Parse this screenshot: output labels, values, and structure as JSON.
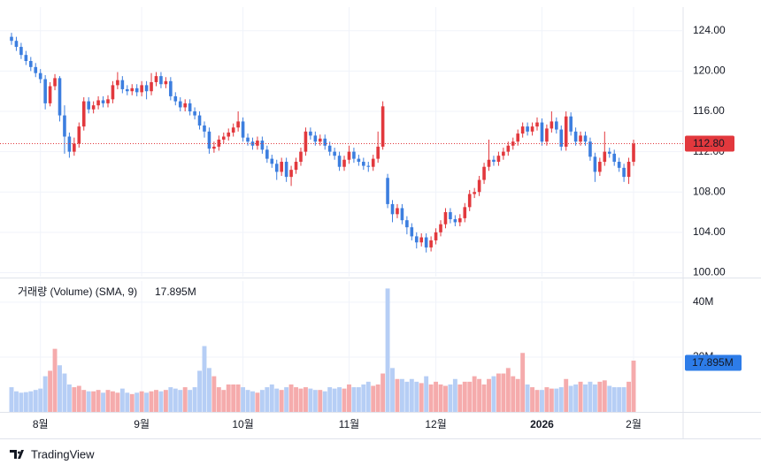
{
  "chart_data": {
    "type": "candlestick",
    "categories": [
      null,
      null,
      null,
      null,
      null,
      null,
      "8월",
      null,
      null,
      null,
      null,
      null,
      null,
      null,
      null,
      null,
      null,
      null,
      null,
      null,
      null,
      null,
      null,
      null,
      null,
      null,
      null,
      "9월",
      null,
      null,
      null,
      null,
      null,
      null,
      null,
      null,
      null,
      null,
      null,
      null,
      null,
      null,
      null,
      null,
      null,
      null,
      null,
      null,
      "10월",
      null,
      null,
      null,
      null,
      null,
      null,
      null,
      null,
      null,
      null,
      null,
      null,
      null,
      null,
      null,
      null,
      null,
      null,
      null,
      null,
      null,
      "11월",
      null,
      null,
      null,
      null,
      null,
      null,
      null,
      null,
      null,
      null,
      null,
      null,
      null,
      null,
      null,
      null,
      null,
      "12월",
      null,
      null,
      null,
      null,
      null,
      null,
      null,
      null,
      null,
      null,
      null,
      null,
      null,
      null,
      null,
      null,
      null,
      null,
      null,
      null,
      null,
      "2026",
      null,
      null,
      null,
      null,
      null,
      null,
      null,
      null,
      null,
      null,
      null,
      null,
      null,
      null,
      null,
      null,
      null,
      null,
      "2월"
    ],
    "open": [
      123.4,
      123.0,
      122.4,
      121.6,
      121.0,
      120.4,
      119.8,
      119.2,
      116.8,
      118.5,
      119.3,
      115.6,
      113.5,
      112.0,
      112.8,
      114.5,
      117.0,
      116.2,
      116.6,
      117.1,
      116.8,
      117.2,
      118.6,
      119.1,
      118.2,
      118.0,
      118.3,
      117.9,
      118.6,
      118.0,
      118.9,
      119.5,
      118.7,
      119.0,
      117.5,
      117.0,
      116.4,
      116.8,
      116.0,
      115.6,
      114.6,
      114.0,
      112.3,
      112.5,
      113.2,
      113.5,
      113.9,
      114.4,
      115.0,
      113.4,
      113.0,
      112.6,
      113.1,
      112.2,
      111.3,
      110.8,
      110.0,
      111.0,
      109.5,
      110.2,
      111.0,
      112.0,
      114.0,
      113.6,
      113.0,
      113.3,
      112.6,
      112.0,
      111.6,
      110.5,
      111.2,
      112.0,
      111.3,
      111.0,
      110.6,
      110.5,
      111.3,
      112.5,
      109.4,
      106.8,
      105.8,
      106.4,
      105.2,
      104.5,
      103.6,
      103.0,
      103.5,
      102.5,
      103.2,
      104.0,
      104.8,
      106.0,
      105.3,
      105.0,
      105.4,
      106.5,
      107.8,
      108.0,
      109.2,
      110.5,
      111.2,
      111.0,
      111.6,
      112.0,
      112.6,
      113.0,
      113.8,
      114.5,
      114.0,
      114.5,
      114.9,
      113.0,
      114.3,
      115.0,
      114.2,
      112.5,
      115.5,
      114.0,
      113.0,
      113.6,
      113.0,
      111.5,
      110.0,
      111.0,
      112.0,
      111.8,
      111.0,
      110.4,
      109.5,
      111.0
    ],
    "high": [
      123.8,
      123.4,
      122.8,
      122.0,
      121.4,
      120.8,
      120.2,
      119.6,
      118.9,
      119.7,
      119.5,
      116.6,
      113.9,
      113.4,
      114.9,
      117.4,
      117.4,
      117.0,
      117.5,
      117.5,
      117.6,
      119.0,
      119.9,
      119.5,
      118.6,
      118.7,
      118.7,
      119.0,
      119.0,
      119.8,
      119.9,
      119.9,
      119.4,
      119.4,
      117.9,
      117.4,
      117.2,
      117.2,
      116.4,
      116.0,
      115.0,
      114.4,
      113.0,
      113.6,
      113.9,
      114.3,
      114.8,
      116.0,
      115.4,
      113.8,
      113.4,
      113.5,
      113.5,
      112.6,
      111.7,
      111.2,
      111.4,
      111.4,
      110.6,
      111.4,
      112.4,
      114.4,
      114.4,
      114.0,
      113.7,
      113.7,
      113.0,
      112.4,
      112.0,
      111.6,
      112.6,
      112.4,
      111.7,
      111.4,
      111.0,
      111.7,
      114.0,
      117.0,
      109.8,
      107.2,
      106.8,
      106.8,
      105.6,
      104.9,
      104.0,
      103.9,
      103.9,
      103.6,
      104.4,
      105.2,
      106.4,
      106.4,
      105.7,
      105.8,
      106.9,
      108.2,
      108.4,
      109.6,
      110.9,
      113.2,
      111.6,
      112.0,
      112.4,
      113.0,
      113.4,
      114.2,
      114.9,
      114.9,
      114.9,
      115.4,
      115.3,
      114.7,
      116.0,
      115.4,
      114.6,
      116.0,
      115.9,
      114.4,
      114.0,
      114.0,
      113.4,
      111.9,
      111.4,
      114.0,
      112.4,
      112.2,
      111.4,
      110.8,
      111.4,
      113.2
    ],
    "low": [
      122.6,
      122.0,
      121.2,
      120.6,
      120.0,
      119.4,
      118.8,
      116.2,
      116.5,
      118.1,
      115.0,
      111.8,
      111.4,
      111.6,
      112.4,
      114.1,
      115.8,
      115.8,
      116.2,
      116.4,
      116.4,
      116.8,
      118.2,
      117.8,
      117.6,
      117.6,
      117.5,
      117.5,
      117.2,
      117.6,
      118.5,
      118.3,
      118.3,
      117.1,
      116.6,
      116.0,
      116.0,
      115.6,
      115.2,
      114.2,
      113.4,
      111.8,
      111.9,
      112.1,
      112.8,
      113.1,
      113.5,
      114.0,
      113.0,
      112.6,
      112.2,
      112.2,
      111.8,
      110.9,
      110.4,
      109.2,
      109.6,
      109.0,
      108.6,
      109.8,
      110.6,
      111.6,
      113.2,
      112.6,
      112.6,
      112.2,
      111.6,
      111.2,
      110.1,
      110.1,
      110.8,
      110.9,
      110.6,
      110.2,
      110.0,
      110.1,
      110.9,
      112.2,
      106.4,
      105.0,
      105.4,
      104.8,
      103.8,
      103.2,
      102.4,
      102.6,
      102.0,
      102.1,
      102.8,
      103.6,
      104.4,
      104.9,
      104.6,
      104.6,
      105.0,
      106.1,
      107.4,
      107.6,
      108.8,
      110.1,
      110.6,
      110.6,
      111.2,
      111.6,
      112.2,
      112.6,
      113.4,
      113.6,
      113.6,
      114.1,
      112.6,
      112.6,
      113.9,
      113.8,
      112.1,
      112.1,
      113.6,
      112.6,
      112.6,
      112.6,
      111.1,
      109.0,
      109.6,
      110.6,
      111.4,
      110.6,
      110.0,
      109.0,
      108.8,
      110.6
    ],
    "close": [
      123.0,
      122.4,
      121.6,
      121.0,
      120.4,
      119.8,
      119.2,
      116.8,
      118.5,
      119.3,
      115.6,
      113.5,
      112.0,
      112.8,
      114.5,
      117.0,
      116.2,
      116.6,
      117.1,
      116.8,
      117.2,
      118.6,
      119.1,
      118.2,
      118.0,
      118.3,
      117.9,
      118.6,
      118.0,
      118.9,
      119.5,
      118.7,
      119.0,
      117.5,
      117.0,
      116.4,
      116.8,
      116.0,
      115.6,
      114.6,
      114.0,
      112.3,
      112.5,
      113.2,
      113.5,
      113.9,
      114.4,
      115.0,
      113.4,
      113.0,
      112.6,
      113.1,
      112.2,
      111.3,
      110.8,
      110.0,
      111.0,
      109.5,
      110.2,
      111.0,
      112.0,
      114.0,
      113.6,
      113.0,
      113.3,
      112.6,
      112.0,
      111.6,
      110.5,
      111.2,
      112.0,
      111.3,
      111.0,
      110.6,
      110.5,
      111.3,
      112.5,
      116.5,
      106.8,
      105.8,
      106.4,
      105.2,
      104.5,
      103.6,
      103.0,
      103.5,
      102.5,
      103.2,
      104.0,
      104.8,
      106.0,
      105.3,
      105.0,
      105.4,
      106.5,
      107.8,
      108.0,
      109.2,
      110.5,
      111.2,
      111.0,
      111.6,
      112.0,
      112.6,
      113.0,
      113.8,
      114.5,
      114.0,
      114.5,
      114.9,
      113.0,
      114.3,
      115.0,
      114.2,
      112.5,
      115.5,
      114.0,
      113.0,
      113.6,
      113.0,
      111.5,
      110.0,
      111.0,
      112.0,
      111.8,
      111.0,
      110.4,
      109.5,
      111.0,
      112.8
    ],
    "volume": [
      9,
      7.5,
      7,
      7.2,
      7.5,
      8,
      8.5,
      13,
      15,
      23,
      17,
      14,
      10,
      9,
      9.5,
      8,
      7.5,
      7.5,
      8,
      7,
      8,
      7.5,
      7,
      8.5,
      7,
      6.5,
      7,
      7.5,
      7,
      7.5,
      8,
      7.5,
      8,
      9,
      8.5,
      8,
      9,
      8,
      9,
      15,
      24,
      16,
      13,
      9,
      8,
      10,
      10,
      10,
      9,
      8,
      7.5,
      7,
      8,
      9,
      10,
      8.5,
      8,
      9,
      10,
      9,
      8.5,
      9,
      8.5,
      8,
      8,
      7.5,
      9,
      8.5,
      9,
      8.5,
      10,
      9,
      9,
      10,
      11,
      9.5,
      10,
      14,
      45,
      16,
      12,
      12,
      11,
      12,
      11,
      10.5,
      13,
      10,
      11,
      10,
      9.5,
      10,
      12,
      10,
      11,
      11,
      13,
      12,
      10,
      12,
      13,
      14,
      14,
      16,
      13,
      12,
      21.5,
      10,
      9,
      8,
      8,
      9,
      8.5,
      8.5,
      9,
      12,
      9.5,
      10,
      11,
      10,
      11,
      10,
      11,
      11.5,
      9.5,
      9,
      9,
      9,
      11,
      18.7
    ],
    "ylim": [
      99.6,
      126
    ],
    "yticks": [
      {
        "value": 100,
        "label": "100.00"
      },
      {
        "value": 104,
        "label": "104.00"
      },
      {
        "value": 108,
        "label": "108.00"
      },
      {
        "value": 112,
        "label": "112.00"
      },
      {
        "value": 116,
        "label": "116.00"
      },
      {
        "value": 120,
        "label": "120.00"
      },
      {
        "value": 124,
        "label": "124.00"
      }
    ],
    "y2lim": [
      0,
      47.7
    ],
    "y2ticks": [
      {
        "value": 20,
        "label": "20M"
      },
      {
        "value": 40,
        "label": "40M"
      }
    ],
    "last_price": {
      "value": 112.8,
      "label": "112.80"
    },
    "volume_title": "거래량 (Volume) (SMA, 9)",
    "volume_sma": {
      "value": 17.895,
      "label": "17.895M"
    },
    "up_color": "#e2383d",
    "down_color": "#3c7edf",
    "volume_up_color": "#f5abac",
    "volume_down_color": "#b6cef5",
    "sma_color": "#2d7ce8",
    "grid": true
  },
  "branding": "TradingView"
}
